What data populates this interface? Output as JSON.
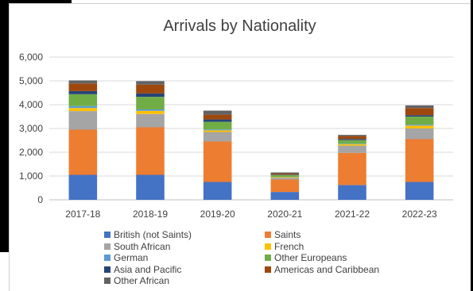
{
  "chart_data": {
    "type": "bar",
    "stacked": true,
    "title": "Arrivals by Nationality",
    "xlabel": "",
    "ylabel": "",
    "ylim": [
      0,
      6000
    ],
    "yticks": [
      "0",
      "1,000",
      "2,000",
      "3,000",
      "4,000",
      "5,000",
      "6,000"
    ],
    "grid": true,
    "legend_position": "bottom",
    "categories": [
      "2017-18",
      "2018-19",
      "2019-20",
      "2020-21",
      "2021-22",
      "2022-23"
    ],
    "series": [
      {
        "name": "British (not Saints)",
        "color": "#4472c4",
        "values": [
          1050,
          1050,
          750,
          330,
          620,
          750
        ]
      },
      {
        "name": "Saints",
        "color": "#ed7d31",
        "values": [
          1900,
          2000,
          1700,
          520,
          1350,
          1800
        ]
      },
      {
        "name": "South African",
        "color": "#a5a5a5",
        "values": [
          780,
          560,
          400,
          80,
          310,
          450
        ]
      },
      {
        "name": "French",
        "color": "#ffc000",
        "values": [
          130,
          130,
          70,
          20,
          60,
          120
        ]
      },
      {
        "name": "German",
        "color": "#5b9bd5",
        "values": [
          80,
          60,
          40,
          10,
          20,
          40
        ]
      },
      {
        "name": "Other Europeans",
        "color": "#70ad47",
        "values": [
          500,
          530,
          320,
          80,
          150,
          340
        ]
      },
      {
        "name": "Asia and Pacific",
        "color": "#264478",
        "values": [
          130,
          140,
          100,
          20,
          50,
          60
        ]
      },
      {
        "name": "Americas and Caribbean",
        "color": "#9e480e",
        "values": [
          320,
          370,
          200,
          40,
          120,
          300
        ]
      },
      {
        "name": "Other African",
        "color": "#636363",
        "values": [
          130,
          150,
          170,
          50,
          50,
          110
        ]
      }
    ]
  }
}
